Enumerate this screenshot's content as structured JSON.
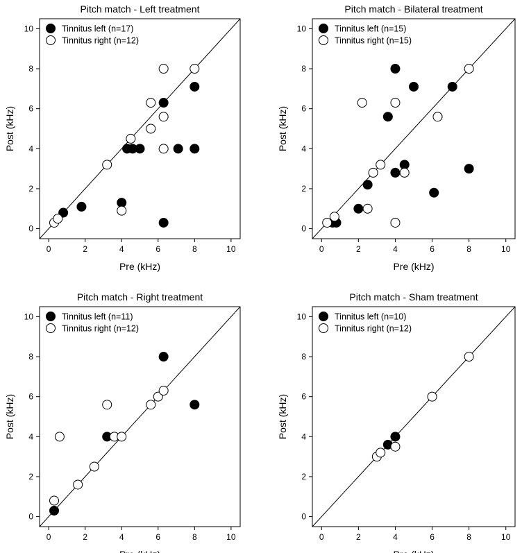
{
  "chart_data": [
    {
      "type": "scatter",
      "title": "Pitch match - Left treatment",
      "xlabel": "Pre (kHz)",
      "ylabel": "Post (kHz)",
      "xlim": [
        -0.5,
        10.5
      ],
      "ylim": [
        -0.5,
        10.5
      ],
      "xticks": [
        "0",
        "2",
        "4",
        "6",
        "8",
        "10"
      ],
      "yticks": [
        "0",
        "2",
        "4",
        "6",
        "8",
        "10"
      ],
      "identity_line": true,
      "legend_position": "top-left",
      "series": [
        {
          "name": "Tinnitus left (n=17)",
          "marker": "filled",
          "points": [
            [
              0.8,
              0.8
            ],
            [
              1.8,
              1.1
            ],
            [
              4.0,
              1.3
            ],
            [
              4.3,
              4.0
            ],
            [
              4.6,
              4.0
            ],
            [
              5.0,
              4.0
            ],
            [
              6.3,
              6.3
            ],
            [
              6.3,
              0.3
            ],
            [
              7.1,
              4.0
            ],
            [
              8.0,
              4.0
            ],
            [
              8.0,
              7.1
            ]
          ]
        },
        {
          "name": "Tinnitus right (n=12)",
          "marker": "open",
          "points": [
            [
              0.3,
              0.3
            ],
            [
              0.5,
              0.5
            ],
            [
              3.2,
              3.2
            ],
            [
              4.0,
              0.9
            ],
            [
              4.5,
              4.5
            ],
            [
              5.6,
              5.0
            ],
            [
              5.6,
              6.3
            ],
            [
              6.3,
              5.6
            ],
            [
              6.3,
              8.0
            ],
            [
              6.3,
              4.0
            ],
            [
              8.0,
              8.0
            ]
          ]
        }
      ]
    },
    {
      "type": "scatter",
      "title": "Pitch match - Bilateral treatment",
      "xlabel": "Pre (kHz)",
      "ylabel": "Post (kHz)",
      "xlim": [
        -0.5,
        10.5
      ],
      "ylim": [
        -0.5,
        10.5
      ],
      "xticks": [
        "0",
        "2",
        "4",
        "6",
        "8",
        "10"
      ],
      "yticks": [
        "0",
        "2",
        "4",
        "6",
        "8",
        "10"
      ],
      "identity_line": true,
      "legend_position": "top-left",
      "series": [
        {
          "name": "Tinnitus left (n=15)",
          "marker": "filled",
          "points": [
            [
              0.6,
              0.3
            ],
            [
              0.8,
              0.3
            ],
            [
              2.0,
              1.0
            ],
            [
              2.5,
              2.2
            ],
            [
              3.6,
              5.6
            ],
            [
              4.0,
              8.0
            ],
            [
              4.0,
              2.8
            ],
            [
              4.5,
              3.2
            ],
            [
              5.0,
              7.1
            ],
            [
              6.1,
              1.8
            ],
            [
              7.1,
              7.1
            ],
            [
              8.0,
              3.0
            ]
          ]
        },
        {
          "name": "Tinnitus right (n=15)",
          "marker": "open",
          "points": [
            [
              0.3,
              0.3
            ],
            [
              0.7,
              0.6
            ],
            [
              2.2,
              6.3
            ],
            [
              2.5,
              1.0
            ],
            [
              2.8,
              2.8
            ],
            [
              3.2,
              3.2
            ],
            [
              4.0,
              6.3
            ],
            [
              4.0,
              0.3
            ],
            [
              4.5,
              2.8
            ],
            [
              6.3,
              5.6
            ],
            [
              8.0,
              8.0
            ]
          ]
        }
      ]
    },
    {
      "type": "scatter",
      "title": "Pitch match - Right treatment",
      "xlabel": "Pre (kHz)",
      "ylabel": "Post (kHz)",
      "xlim": [
        -0.5,
        10.5
      ],
      "ylim": [
        -0.5,
        10.5
      ],
      "xticks": [
        "0",
        "2",
        "4",
        "6",
        "8",
        "10"
      ],
      "yticks": [
        "0",
        "2",
        "4",
        "6",
        "8",
        "10"
      ],
      "identity_line": true,
      "legend_position": "top-left",
      "series": [
        {
          "name": "Tinnitus left (n=11)",
          "marker": "filled",
          "points": [
            [
              0.3,
              0.3
            ],
            [
              3.2,
              4.0
            ],
            [
              6.3,
              8.0
            ],
            [
              8.0,
              5.6
            ]
          ]
        },
        {
          "name": "Tinnitus right (n=12)",
          "marker": "open",
          "points": [
            [
              0.3,
              0.8
            ],
            [
              0.6,
              4.0
            ],
            [
              1.6,
              1.6
            ],
            [
              2.5,
              2.5
            ],
            [
              3.2,
              5.6
            ],
            [
              3.6,
              4.0
            ],
            [
              4.0,
              4.0
            ],
            [
              5.6,
              5.6
            ],
            [
              6.0,
              6.0
            ],
            [
              6.3,
              6.3
            ]
          ]
        }
      ]
    },
    {
      "type": "scatter",
      "title": "Pitch match - Sham treatment",
      "xlabel": "Pre (kHz)",
      "ylabel": "Post (kHz)",
      "xlim": [
        -0.5,
        10.5
      ],
      "ylim": [
        -0.5,
        10.5
      ],
      "xticks": [
        "0",
        "2",
        "4",
        "6",
        "8",
        "10"
      ],
      "yticks": [
        "0",
        "2",
        "4",
        "6",
        "8",
        "10"
      ],
      "identity_line": true,
      "legend_position": "top-left",
      "series": [
        {
          "name": "Tinnitus left (n=10)",
          "marker": "filled",
          "points": [
            [
              3.6,
              3.6
            ],
            [
              4.0,
              4.0
            ]
          ]
        },
        {
          "name": "Tinnitus right (n=12)",
          "marker": "open",
          "points": [
            [
              3.0,
              3.0
            ],
            [
              3.2,
              3.2
            ],
            [
              4.0,
              3.5
            ],
            [
              6.0,
              6.0
            ],
            [
              8.0,
              8.0
            ]
          ]
        }
      ]
    }
  ]
}
